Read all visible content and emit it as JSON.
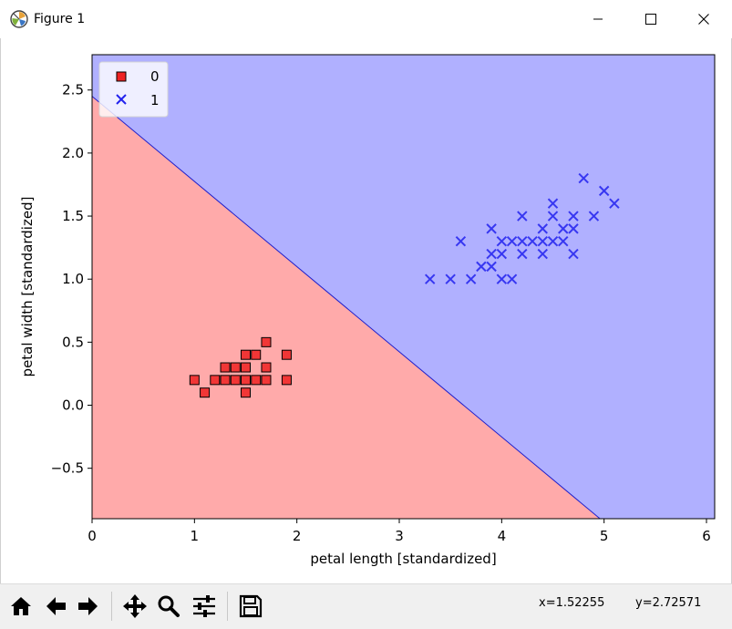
{
  "window": {
    "title": "Figure 1",
    "icon": "matplotlib-icon",
    "controls": [
      "minimize-icon",
      "maximize-icon",
      "close-icon"
    ]
  },
  "toolbar": {
    "buttons": [
      {
        "name": "home-button",
        "icon": "home-icon"
      },
      {
        "name": "back-button",
        "icon": "arrow-left-icon"
      },
      {
        "name": "forward-button",
        "icon": "arrow-right-icon"
      },
      {
        "name": "pan-button",
        "icon": "move-icon"
      },
      {
        "name": "zoom-button",
        "icon": "magnifier-icon"
      },
      {
        "name": "configure-subplots-button",
        "icon": "sliders-icon"
      },
      {
        "name": "save-button",
        "icon": "floppy-disk-icon"
      }
    ],
    "coord_x": "x=1.52255",
    "coord_y": "y=2.72571"
  },
  "chart_data": {
    "type": "scatter",
    "title": "",
    "xlabel": "petal length [standardized]",
    "ylabel": "petal width [standardized]",
    "xlim": [
      0,
      6.08
    ],
    "ylim": [
      -0.9,
      2.78
    ],
    "xticks": [
      0,
      1,
      2,
      3,
      4,
      5,
      6
    ],
    "yticks": [
      -0.5,
      0.0,
      0.5,
      1.0,
      1.5,
      2.0,
      2.5
    ],
    "ytick_labels": [
      "−0.5",
      "0.0",
      "0.5",
      "1.0",
      "1.5",
      "2.0",
      "2.5"
    ],
    "grid": false,
    "legend_position": "top-left",
    "decision_boundary": {
      "x_at_top": 0,
      "y_at_x0": 2.45,
      "x_at_bottom": 4.96,
      "y_at_bottom": -0.9
    },
    "region_colors": {
      "class_0": "#ffaaaa",
      "class_1": "#b0b0ff"
    },
    "series": [
      {
        "name": "0",
        "marker": "square",
        "color": "#ee2222",
        "points": [
          [
            1.0,
            0.2
          ],
          [
            1.1,
            0.1
          ],
          [
            1.2,
            0.2
          ],
          [
            1.3,
            0.2
          ],
          [
            1.3,
            0.3
          ],
          [
            1.4,
            0.2
          ],
          [
            1.4,
            0.3
          ],
          [
            1.5,
            0.1
          ],
          [
            1.5,
            0.2
          ],
          [
            1.5,
            0.3
          ],
          [
            1.5,
            0.4
          ],
          [
            1.6,
            0.2
          ],
          [
            1.6,
            0.4
          ],
          [
            1.7,
            0.2
          ],
          [
            1.7,
            0.3
          ],
          [
            1.7,
            0.5
          ],
          [
            1.9,
            0.2
          ],
          [
            1.9,
            0.4
          ]
        ]
      },
      {
        "name": "1",
        "marker": "x",
        "color": "#2222ee",
        "points": [
          [
            3.3,
            1.0
          ],
          [
            3.5,
            1.0
          ],
          [
            3.6,
            1.3
          ],
          [
            3.7,
            1.0
          ],
          [
            3.8,
            1.1
          ],
          [
            3.9,
            1.1
          ],
          [
            3.9,
            1.2
          ],
          [
            3.9,
            1.4
          ],
          [
            4.0,
            1.0
          ],
          [
            4.0,
            1.2
          ],
          [
            4.0,
            1.3
          ],
          [
            4.1,
            1.0
          ],
          [
            4.1,
            1.3
          ],
          [
            4.2,
            1.2
          ],
          [
            4.2,
            1.3
          ],
          [
            4.2,
            1.5
          ],
          [
            4.3,
            1.3
          ],
          [
            4.4,
            1.2
          ],
          [
            4.4,
            1.3
          ],
          [
            4.4,
            1.4
          ],
          [
            4.5,
            1.3
          ],
          [
            4.5,
            1.5
          ],
          [
            4.5,
            1.6
          ],
          [
            4.6,
            1.3
          ],
          [
            4.6,
            1.4
          ],
          [
            4.7,
            1.2
          ],
          [
            4.7,
            1.4
          ],
          [
            4.7,
            1.5
          ],
          [
            4.8,
            1.8
          ],
          [
            4.9,
            1.5
          ],
          [
            5.0,
            1.7
          ],
          [
            5.1,
            1.6
          ]
        ]
      }
    ]
  }
}
